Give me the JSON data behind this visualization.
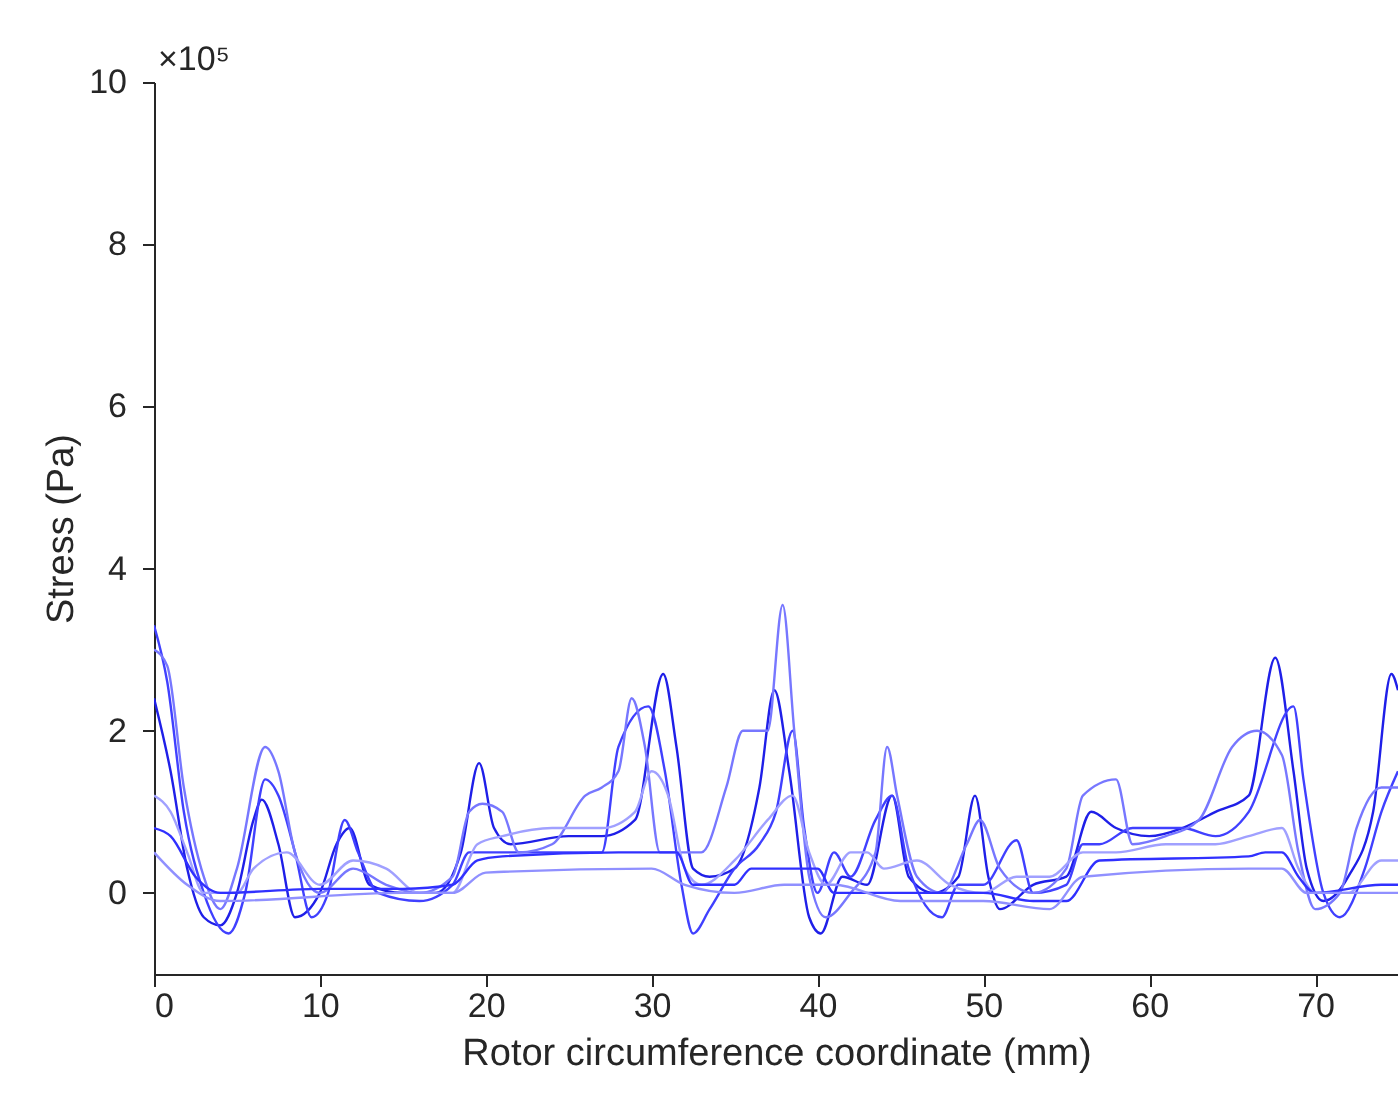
{
  "chart_data": {
    "type": "line",
    "xlabel": "Rotor circumference coordinate (mm)",
    "ylabel": "Stress (Pa)",
    "annotations": [
      "×10⁵"
    ],
    "xlim": [
      0,
      75
    ],
    "xticks": [
      0,
      10,
      20,
      30,
      40,
      50,
      60,
      70
    ],
    "ylim": [
      -1,
      10
    ],
    "yticks": [
      0,
      2,
      4,
      6,
      8,
      10
    ],
    "grid": false,
    "legend": false,
    "marker": "none",
    "line_style": "solid",
    "series": [
      {
        "color": "#1f1fe8",
        "x": [
          0,
          1,
          2,
          3,
          4,
          5,
          6,
          6.5,
          7.5,
          8.5,
          10,
          11,
          11.8,
          13,
          15,
          17,
          18.5,
          19.6,
          20.5,
          21.5,
          25,
          27,
          29,
          30.7,
          31.5,
          32.5,
          33.5,
          35,
          36.5,
          37.4,
          38.3,
          39.5,
          40.2,
          41.5,
          43,
          44.5,
          45.5,
          47,
          48.5,
          49.5,
          50.3,
          51,
          53,
          55,
          56.5,
          58,
          60,
          62,
          64,
          66,
          67.6,
          68.7,
          69.5,
          70.5,
          72,
          73.5,
          74.6,
          75
        ],
        "values": [
          2.4,
          1.5,
          0.3,
          -0.3,
          -0.4,
          0,
          0.9,
          1.15,
          0.6,
          -0.3,
          0,
          0.6,
          0.8,
          0.1,
          0,
          0,
          0.5,
          1.6,
          0.8,
          0.6,
          0.7,
          0.7,
          0.9,
          2.7,
          1.8,
          0.3,
          0.2,
          0.3,
          1.3,
          2.5,
          1.5,
          -0.3,
          -0.5,
          0.2,
          0.1,
          1.2,
          0.2,
          0,
          0.2,
          1.2,
          0.2,
          -0.2,
          0.1,
          0.2,
          1.0,
          0.8,
          0.7,
          0.8,
          1.0,
          1.2,
          2.9,
          1.5,
          0.3,
          -0.1,
          0.2,
          1.0,
          2.7,
          2.5
        ]
      },
      {
        "color": "#4040ff",
        "x": [
          0,
          0.8,
          1.8,
          3,
          4.5,
          5.5,
          6.7,
          7.5,
          8.5,
          9.5,
          10.5,
          11.5,
          12.3,
          13.5,
          16,
          18,
          19,
          21,
          24,
          27,
          28,
          29.8,
          30.8,
          31.8,
          32.5,
          33.5,
          35,
          36.5,
          37.5,
          38.5,
          39.2,
          40,
          41,
          42,
          43.5,
          44.5,
          45.5,
          47.5,
          48.5,
          50,
          52,
          53,
          55,
          56,
          57,
          59,
          62,
          64,
          66,
          68.7,
          69.3,
          70.5,
          71.5,
          73,
          74,
          75
        ],
        "values": [
          3.3,
          2.6,
          1.0,
          0,
          -0.5,
          0,
          1.4,
          1.2,
          0.5,
          -0.3,
          0,
          0.9,
          0.5,
          0,
          -0.1,
          0.1,
          0.5,
          0.5,
          0.5,
          0.5,
          1.8,
          2.3,
          1.5,
          0.1,
          -0.5,
          -0.2,
          0.3,
          0.6,
          1.0,
          2.0,
          0.8,
          0,
          0.5,
          0.2,
          0.9,
          1.2,
          0.3,
          -0.3,
          0.1,
          0.1,
          0.65,
          0,
          0.1,
          0.6,
          0.6,
          0.8,
          0.8,
          0.7,
          1.0,
          2.3,
          1.4,
          0,
          -0.3,
          0.3,
          1.0,
          1.5
        ]
      },
      {
        "color": "#7777ff",
        "x": [
          0,
          0.8,
          1.8,
          3,
          4,
          5,
          6.7,
          7.5,
          8.5,
          10,
          12,
          14,
          16,
          18,
          19,
          19.8,
          21,
          22,
          24,
          26,
          27,
          28,
          28.8,
          29.6,
          30.5,
          31.5,
          33,
          34.5,
          35.5,
          37,
          37.9,
          38.6,
          39.5,
          40.5,
          42,
          43.5,
          44.2,
          44.8,
          46,
          47.5,
          49,
          49.8,
          51,
          53,
          55,
          56,
          58,
          59,
          61,
          63,
          65,
          66.5,
          68,
          69,
          70,
          71.5,
          72.5,
          74,
          75
        ],
        "values": [
          3.0,
          2.8,
          1.3,
          0.2,
          -0.2,
          0.3,
          1.8,
          1.5,
          0.5,
          0,
          0.3,
          0.1,
          0,
          0.2,
          1.0,
          1.1,
          1.0,
          0.5,
          0.6,
          1.2,
          1.3,
          1.5,
          2.4,
          1.8,
          0.5,
          0.5,
          0.5,
          1.3,
          2.0,
          2.0,
          3.55,
          2.0,
          0.2,
          -0.3,
          0,
          0.5,
          1.8,
          1.2,
          0.2,
          0,
          0.6,
          0.9,
          0.3,
          0,
          0.3,
          1.2,
          1.4,
          0.6,
          0.7,
          0.9,
          1.8,
          2.0,
          1.7,
          0.5,
          -0.2,
          0,
          0.8,
          1.3,
          1.3
        ]
      },
      {
        "color": "#a0a0ff",
        "x": [
          0,
          1,
          2,
          3,
          5,
          6,
          8,
          10,
          12,
          14,
          16,
          18,
          19.5,
          21,
          24,
          27,
          29,
          30,
          31,
          32,
          33,
          35,
          37,
          38.5,
          39.5,
          40.5,
          42,
          43,
          44,
          46,
          48,
          50,
          52,
          54,
          56,
          58,
          61,
          64,
          66,
          68,
          69,
          70,
          72,
          74,
          75
        ],
        "values": [
          1.2,
          1.0,
          0.5,
          0,
          0,
          0.3,
          0.5,
          0.1,
          0.4,
          0.3,
          0,
          0,
          0.6,
          0.7,
          0.8,
          0.8,
          1.0,
          1.5,
          1.2,
          0.3,
          0.1,
          0.4,
          0.9,
          1.2,
          0.5,
          0.1,
          0.5,
          0.5,
          0.3,
          0.4,
          0.1,
          0,
          0.2,
          0.2,
          0.5,
          0.5,
          0.6,
          0.6,
          0.7,
          0.8,
          0.3,
          0,
          0,
          0.4,
          0.4
        ]
      },
      {
        "color": "#3030ff",
        "x": [
          0,
          1,
          2.5,
          4,
          10,
          15,
          18,
          19.5,
          21,
          28,
          30,
          31.5,
          32.5,
          35,
          36,
          40,
          41,
          45,
          50,
          53,
          55,
          57,
          66,
          67,
          68,
          69,
          70,
          74,
          75
        ],
        "values": [
          0.8,
          0.7,
          0.2,
          0,
          0.05,
          0.05,
          0.1,
          0.4,
          0.45,
          0.5,
          0.5,
          0.5,
          0.1,
          0.1,
          0.3,
          0.3,
          0,
          0,
          0,
          -0.1,
          -0.1,
          0.4,
          0.45,
          0.5,
          0.5,
          0.2,
          0,
          0.1,
          0.1
        ]
      },
      {
        "color": "#9090ff",
        "x": [
          0,
          2,
          4,
          15,
          18,
          20,
          30,
          32,
          35,
          38,
          41,
          45,
          50,
          54,
          56,
          66,
          68,
          69.5,
          75
        ],
        "values": [
          0.5,
          0.1,
          -0.1,
          0,
          0,
          0.25,
          0.3,
          0.1,
          0,
          0.1,
          0.1,
          -0.1,
          -0.1,
          -0.2,
          0.2,
          0.3,
          0.3,
          0,
          0
        ]
      }
    ]
  }
}
